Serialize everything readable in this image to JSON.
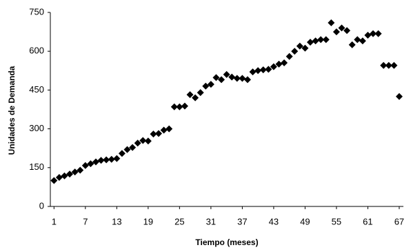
{
  "chart_data": {
    "type": "scatter",
    "xlabel": "Tiempo (meses)",
    "ylabel": "Unidades de Demanda",
    "x": [
      1,
      2,
      3,
      4,
      5,
      6,
      7,
      8,
      9,
      10,
      11,
      12,
      13,
      14,
      15,
      16,
      17,
      18,
      19,
      20,
      21,
      22,
      23,
      24,
      25,
      26,
      27,
      28,
      29,
      30,
      31,
      32,
      33,
      34,
      35,
      36,
      37,
      38,
      39,
      40,
      41,
      42,
      43,
      44,
      45,
      46,
      47,
      48,
      49,
      50,
      51,
      52,
      53,
      54,
      55,
      56,
      57,
      58,
      59,
      60,
      61,
      62,
      63,
      64,
      65,
      66,
      67
    ],
    "series": [
      {
        "color": "#000000",
        "values": [
          100,
          112,
          118,
          125,
          133,
          140,
          158,
          165,
          172,
          178,
          180,
          182,
          185,
          205,
          220,
          228,
          245,
          255,
          253,
          280,
          282,
          295,
          300,
          385,
          385,
          388,
          432,
          420,
          440,
          465,
          472,
          498,
          490,
          510,
          500,
          495,
          495,
          490,
          520,
          525,
          528,
          530,
          540,
          550,
          555,
          580,
          600,
          620,
          612,
          635,
          640,
          645,
          645,
          710,
          675,
          690,
          680,
          625,
          645,
          640,
          662,
          668,
          668,
          545,
          545,
          545,
          425
        ]
      }
    ],
    "xlim": [
      0.3,
      67.8
    ],
    "xticks": [
      1,
      7,
      13,
      19,
      25,
      31,
      37,
      43,
      49,
      55,
      61,
      67
    ],
    "ylim": [
      0,
      750
    ],
    "yticks": [
      0,
      150,
      300,
      450,
      600,
      750
    ]
  }
}
